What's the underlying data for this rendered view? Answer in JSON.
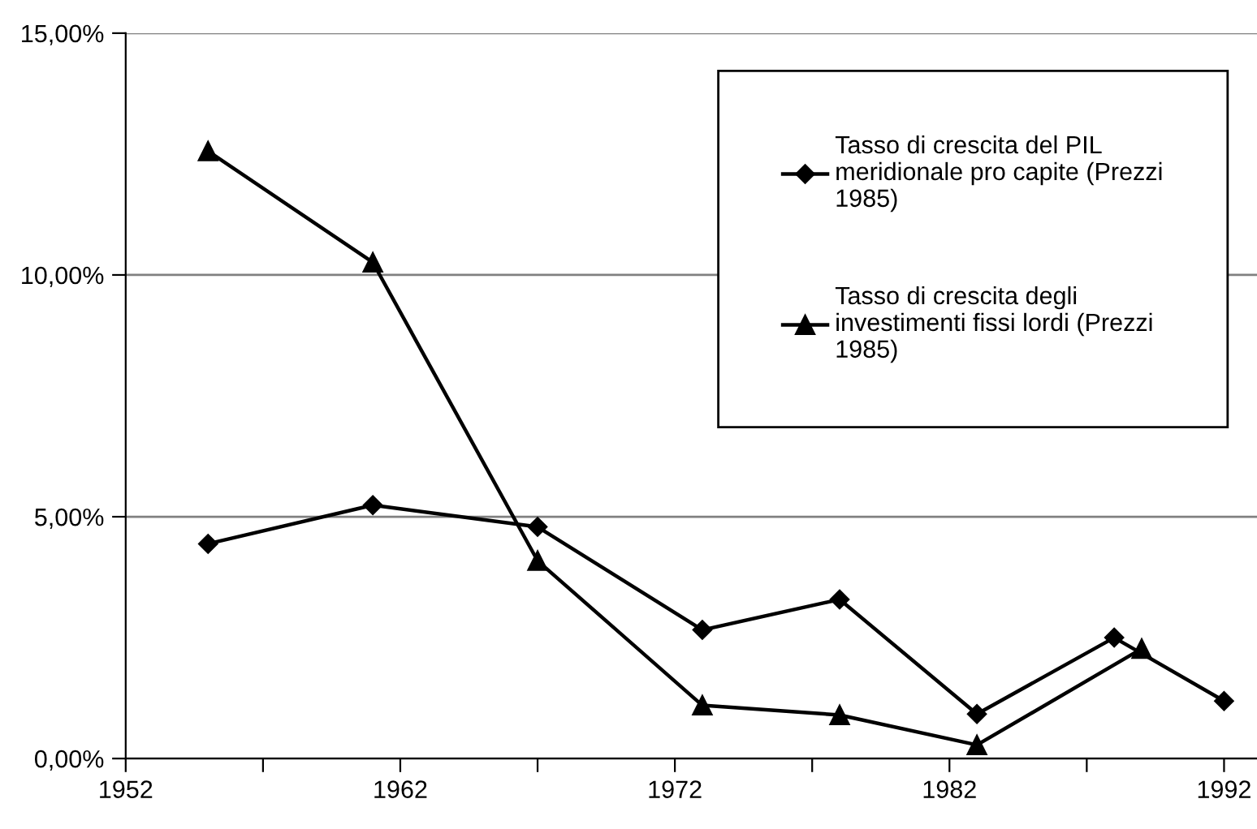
{
  "chart_data": {
    "type": "line",
    "ylim": [
      0,
      15
    ],
    "xlim": [
      1952,
      1993.2
    ],
    "yticks": [
      {
        "value": 0,
        "label": "0,00%"
      },
      {
        "value": 5,
        "label": "5,00%"
      },
      {
        "value": 10,
        "label": "10,00%"
      },
      {
        "value": 15,
        "label": "15,00%"
      }
    ],
    "xticks": [
      1952,
      {
        "value": 1957,
        "label": null
      },
      1962,
      {
        "value": 1967,
        "label": null
      },
      1972,
      {
        "value": 1977,
        "label": null
      },
      1982,
      {
        "value": 1987,
        "label": null
      },
      1992
    ],
    "grid": "y",
    "legend": "top right",
    "line_style": "solid",
    "series": [
      {
        "name": "Tasso di crescita del PIL\nmeridionale pro capite (Prezzi\n1985)",
        "color": "#000000",
        "marker": "diamond",
        "x": [
          1955,
          1961,
          1967,
          1973,
          1978,
          1983,
          1988,
          1992
        ],
        "values": [
          4.44,
          5.24,
          4.79,
          2.66,
          3.29,
          0.92,
          2.5,
          1.19
        ]
      },
      {
        "name": "Tasso di crescita degli\ninvestimenti fissi lordi (Prezzi\n1985)",
        "color": "#000000",
        "marker": "triangle",
        "x": [
          1955,
          1961,
          1967,
          1973,
          1978,
          1983,
          1989
        ],
        "values": [
          12.56,
          10.26,
          4.09,
          1.1,
          0.9,
          0.28,
          2.27
        ]
      }
    ]
  }
}
